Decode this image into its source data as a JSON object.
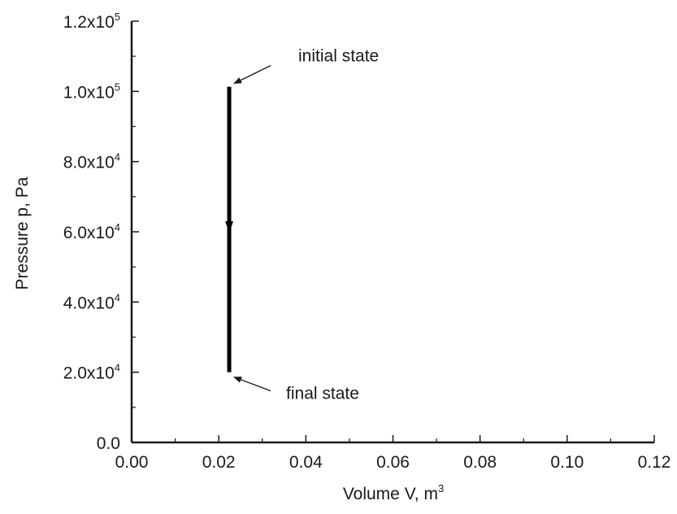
{
  "chart_data": {
    "type": "line",
    "xlabel": "Volume V, m",
    "xlabel_sup": "3",
    "ylabel": "Pressure p, Pa",
    "xlim": [
      0.0,
      0.12
    ],
    "ylim": [
      0,
      120000
    ],
    "x_ticks": [
      0.0,
      0.02,
      0.04,
      0.06,
      0.08,
      0.1,
      0.12
    ],
    "x_tick_labels": [
      "0.00",
      "0.02",
      "0.04",
      "0.06",
      "0.08",
      "0.10",
      "0.12"
    ],
    "y_ticks": [
      0,
      20000,
      40000,
      60000,
      80000,
      100000,
      120000
    ],
    "y_tick_labels": [
      {
        "base": "0.0",
        "exp": ""
      },
      {
        "base": "2.0x10",
        "exp": "4"
      },
      {
        "base": "4.0x10",
        "exp": "4"
      },
      {
        "base": "6.0x10",
        "exp": "4"
      },
      {
        "base": "8.0x10",
        "exp": "4"
      },
      {
        "base": "1.0x10",
        "exp": "5"
      },
      {
        "base": "1.2x10",
        "exp": "5"
      }
    ],
    "grid": false,
    "series": [
      {
        "x": [
          0.0224,
          0.0224
        ],
        "y": [
          101325,
          20000
        ],
        "direction": "downward arrow at midpoint",
        "color": "#000000"
      }
    ],
    "annotations": [
      {
        "text": "initial state",
        "x": 0.0224,
        "y": 101325,
        "placement": "upper-right"
      },
      {
        "text": "final state",
        "x": 0.0224,
        "y": 20000,
        "placement": "lower-right"
      }
    ]
  }
}
